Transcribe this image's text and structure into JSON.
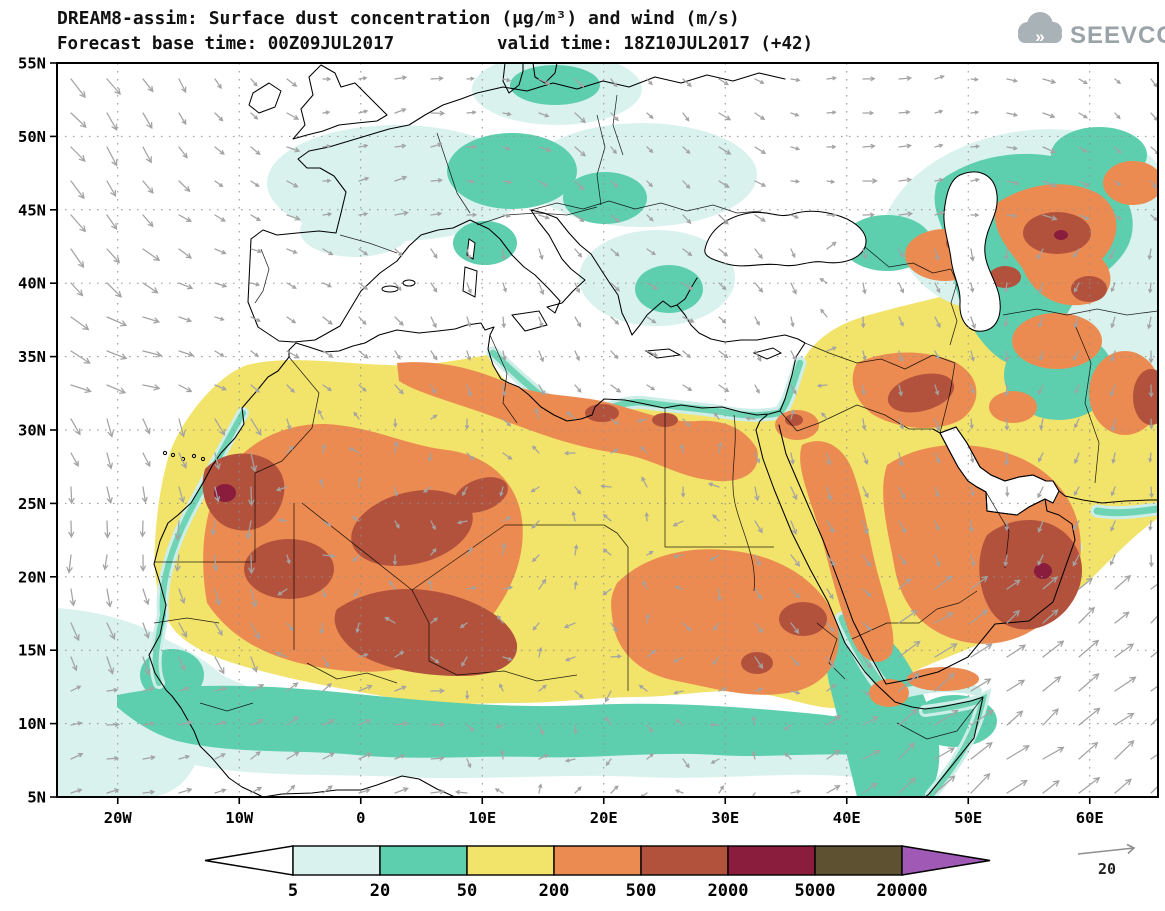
{
  "header": {
    "title_line1": "DREAM8-assim: Surface dust concentration (μg/m³) and wind (m/s)",
    "title_line2_left": "Forecast base time: 00Z09JUL2017",
    "title_line2_right": "valid time: 18Z10JUL2017 (+42)"
  },
  "logo": {
    "text": "SEEVCCC",
    "chevrons": "»"
  },
  "axes": {
    "lat_labels": [
      "55N",
      "50N",
      "45N",
      "40N",
      "35N",
      "30N",
      "25N",
      "20N",
      "15N",
      "10N",
      "5N"
    ],
    "lon_labels": [
      "20W",
      "10W",
      "0",
      "10E",
      "20E",
      "30E",
      "40E",
      "50E",
      "60E"
    ]
  },
  "legend": {
    "labels": [
      "5",
      "20",
      "50",
      "200",
      "500",
      "2000",
      "5000",
      "20000"
    ],
    "colors": [
      "#ffffff",
      "#d9f2ee",
      "#5ecfae",
      "#f2e36a",
      "#eb8b51",
      "#b2523c",
      "#8a1c3d",
      "#5e5132",
      "#a05ab5"
    ]
  },
  "wind_ref": {
    "label": "20"
  },
  "chart_data": {
    "type": "heatmap",
    "title": "DREAM8-assim: Surface dust concentration (μg/m³) and wind (m/s)",
    "model": "DREAM8-assim",
    "variable": "Surface dust concentration",
    "units": "μg/m³",
    "wind_variable": "wind",
    "wind_units": "m/s",
    "forecast_base_time": "00Z09JUL2017",
    "valid_time": "18Z10JUL2017",
    "forecast_offset_hours": 42,
    "x_axis": {
      "ticks": [
        "20W",
        "10W",
        "0",
        "10E",
        "20E",
        "30E",
        "40E",
        "50E",
        "60E"
      ],
      "approx_range": [
        "25W",
        "65E"
      ]
    },
    "y_axis": {
      "ticks": [
        "55N",
        "50N",
        "45N",
        "40N",
        "35N",
        "30N",
        "25N",
        "20N",
        "15N",
        "10N",
        "5N"
      ],
      "approx_range": [
        "5N",
        "55N"
      ]
    },
    "contour_levels_ugm3": [
      5,
      20,
      50,
      200,
      500,
      2000,
      5000,
      20000
    ],
    "level_colors": [
      "#ffffff",
      "#d9f2ee",
      "#5ecfae",
      "#f2e36a",
      "#eb8b51",
      "#b2523c",
      "#8a1c3d",
      "#5e5132",
      "#a05ab5"
    ],
    "wind_reference_ms": 20,
    "graticule": "dotted, every 5° latitude and 10° longitude",
    "high_dust_regions": [
      "Western Sahara / Morocco coast",
      "Mali–Niger central Sahara",
      "southern Algeria",
      "Libyan and Egyptian coast",
      "Sudan near Red Sea",
      "eastern Arabia / Oman",
      "east of the Caspian Sea"
    ]
  }
}
